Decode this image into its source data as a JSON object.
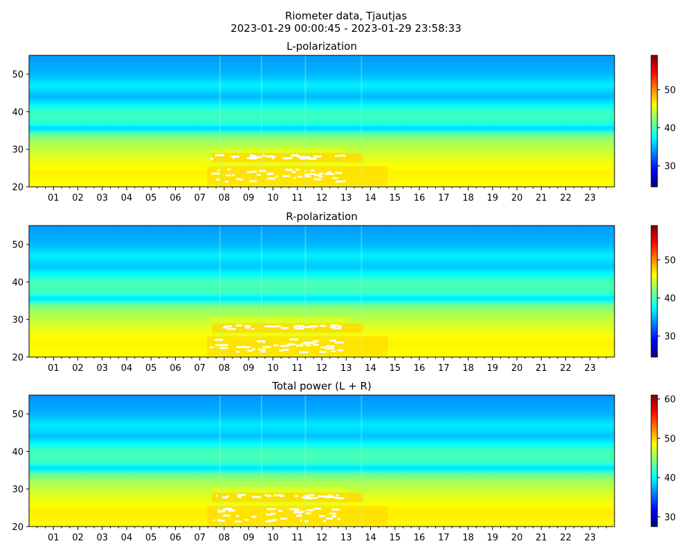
{
  "figure": {
    "title_line1": "Riometer data, Tjautjas",
    "title_line2": "2023-01-29 00:00:45 - 2023-01-29 23:58:33"
  },
  "colors": {
    "jet": [
      "#00007f",
      "#0000ff",
      "#007fff",
      "#00ffff",
      "#7fff7f",
      "#ffff00",
      "#ff7f00",
      "#ff0000",
      "#7f0000"
    ],
    "saturated": "#ffffff"
  },
  "chart_data": [
    {
      "type": "heatmap",
      "title": "L-polarization",
      "x_hour_ticks": [
        "01",
        "02",
        "03",
        "04",
        "05",
        "06",
        "07",
        "08",
        "09",
        "10",
        "11",
        "12",
        "13",
        "14",
        "15",
        "16",
        "17",
        "18",
        "19",
        "20",
        "21",
        "22",
        "23"
      ],
      "xlim_hours": [
        0,
        24
      ],
      "y_ticks": [
        20,
        30,
        40,
        50
      ],
      "ylim": [
        20,
        55
      ],
      "colorbar": {
        "ticks": [
          30,
          40,
          50
        ],
        "range": [
          24.5,
          59
        ]
      },
      "intensity_profile": {
        "y": [
          20,
          24,
          28,
          32,
          34,
          35.5,
          37,
          40,
          42,
          44,
          47,
          50,
          55
        ],
        "value": [
          46,
          46.5,
          45,
          43,
          41,
          35.5,
          39,
          39.5,
          37,
          35,
          37,
          35,
          34
        ]
      },
      "saturation_window_hours": [
        7,
        14.5
      ]
    },
    {
      "type": "heatmap",
      "title": "R-polarization",
      "x_hour_ticks": [
        "01",
        "02",
        "03",
        "04",
        "05",
        "06",
        "07",
        "08",
        "09",
        "10",
        "11",
        "12",
        "13",
        "14",
        "15",
        "16",
        "17",
        "18",
        "19",
        "20",
        "21",
        "22",
        "23"
      ],
      "xlim_hours": [
        0,
        24
      ],
      "y_ticks": [
        20,
        30,
        40,
        50
      ],
      "ylim": [
        20,
        55
      ],
      "colorbar": {
        "ticks": [
          30,
          40,
          50
        ],
        "range": [
          24.5,
          59
        ]
      },
      "intensity_profile": {
        "y": [
          20,
          24,
          28,
          32,
          34,
          35.5,
          37,
          40,
          42,
          44,
          47,
          50,
          55
        ],
        "value": [
          46,
          46.5,
          45,
          43,
          41,
          36,
          39.5,
          40,
          37.5,
          35.5,
          37,
          35,
          34
        ]
      },
      "saturation_window_hours": [
        7,
        14.5
      ]
    },
    {
      "type": "heatmap",
      "title": "Total power (L + R)",
      "x_hour_ticks": [
        "01",
        "02",
        "03",
        "04",
        "05",
        "06",
        "07",
        "08",
        "09",
        "10",
        "11",
        "12",
        "13",
        "14",
        "15",
        "16",
        "17",
        "18",
        "19",
        "20",
        "21",
        "22",
        "23"
      ],
      "xlim_hours": [
        0,
        24
      ],
      "y_ticks": [
        20,
        30,
        40,
        50
      ],
      "ylim": [
        20,
        55
      ],
      "colorbar": {
        "ticks": [
          30,
          40,
          50,
          60
        ],
        "range": [
          27.5,
          61
        ]
      },
      "intensity_profile": {
        "y": [
          20,
          24,
          28,
          32,
          34,
          35.5,
          37,
          40,
          42,
          44,
          47,
          50,
          55
        ],
        "value": [
          48.5,
          49,
          47.5,
          45.5,
          43.5,
          38.5,
          42,
          42.5,
          40,
          38,
          39.5,
          37.5,
          36.5
        ]
      },
      "saturation_window_hours": [
        7,
        14.5
      ]
    }
  ]
}
